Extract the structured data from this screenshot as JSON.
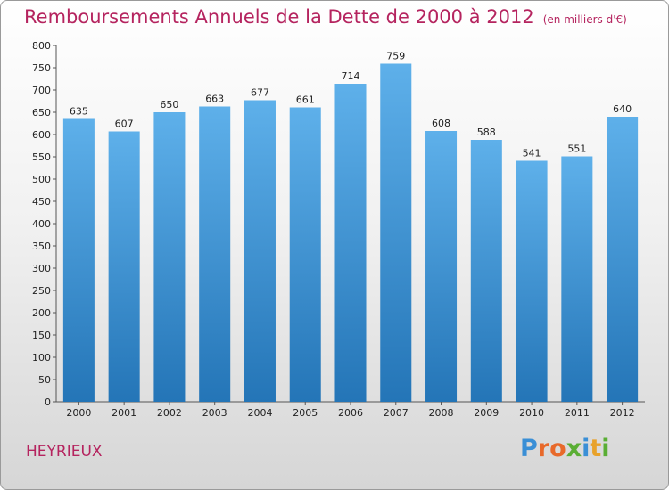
{
  "title": "Remboursements Annuels de la Dette de 2000 à 2012",
  "subtitle": "(en milliers d'€)",
  "commune": "HEYRIEUX",
  "logo": {
    "text": "Proxiti",
    "letters": [
      {
        "ch": "P",
        "color": "#3a8fd6"
      },
      {
        "ch": "r",
        "color": "#e8692a"
      },
      {
        "ch": "o",
        "color": "#e8692a"
      },
      {
        "ch": "x",
        "color": "#5aae34"
      },
      {
        "ch": "i",
        "color": "#3a8fd6"
      },
      {
        "ch": "t",
        "color": "#e8a22a"
      },
      {
        "ch": "i",
        "color": "#5aae34"
      }
    ]
  },
  "colors": {
    "title": "#b5245f",
    "bar_top": "#5eb0ea",
    "bar_bottom": "#2475b7"
  },
  "chart_data": {
    "type": "bar",
    "categories": [
      "2000",
      "2001",
      "2002",
      "2003",
      "2004",
      "2005",
      "2006",
      "2007",
      "2008",
      "2009",
      "2010",
      "2011",
      "2012"
    ],
    "values": [
      635,
      607,
      650,
      663,
      677,
      661,
      714,
      759,
      608,
      588,
      541,
      551,
      640
    ],
    "ylim": [
      0,
      800
    ],
    "yticks": [
      0,
      50,
      100,
      150,
      200,
      250,
      300,
      350,
      400,
      450,
      500,
      550,
      600,
      650,
      700,
      750,
      800
    ],
    "grid": false
  }
}
